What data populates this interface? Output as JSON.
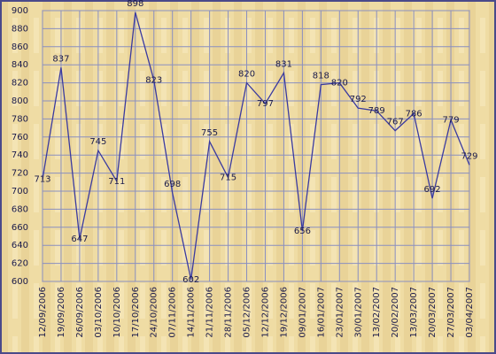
{
  "chart_data": {
    "type": "line",
    "categories": [
      "12/09/2006",
      "19/09/2006",
      "26/09/2006",
      "03/10/2006",
      "10/10/2006",
      "17/10/2006",
      "24/10/2006",
      "07/11/2006",
      "14/11/2006",
      "21/11/2006",
      "28/11/2006",
      "05/12/2006",
      "12/12/2006",
      "19/12/2006",
      "09/01/2007",
      "16/01/2007",
      "23/01/2007",
      "30/01/2007",
      "13/02/2007",
      "20/02/2007",
      "13/03/2007",
      "20/03/2007",
      "27/03/2007",
      "03/04/2007"
    ],
    "values": [
      713,
      837,
      647,
      745,
      711,
      898,
      823,
      698,
      602,
      755,
      715,
      820,
      797,
      831,
      656,
      818,
      820,
      792,
      789,
      767,
      786,
      692,
      779,
      729
    ],
    "color": "#3a3aa0",
    "ylim": [
      600,
      900
    ],
    "yticks": [
      600,
      620,
      640,
      660,
      680,
      700,
      720,
      740,
      760,
      780,
      800,
      820,
      840,
      860,
      880,
      900
    ],
    "grid": true
  }
}
